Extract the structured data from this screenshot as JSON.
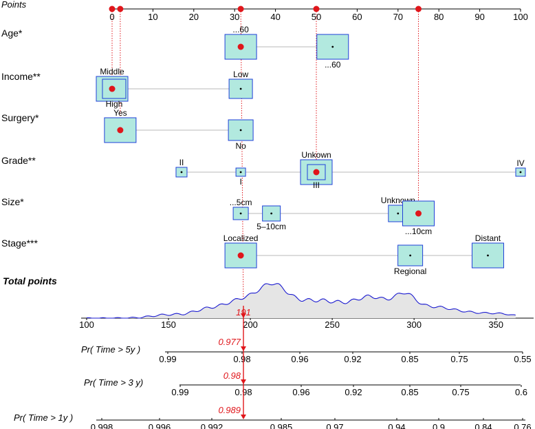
{
  "chart_data": {
    "type": "nomogram",
    "points_axis": {
      "label": "Points",
      "min": 0,
      "max": 100,
      "ticks": [
        "0",
        "10",
        "20",
        "30",
        "40",
        "50",
        "60",
        "70",
        "80",
        "90",
        "100"
      ],
      "highlighted_points": [
        0,
        2,
        31.5,
        50,
        75
      ]
    },
    "variables": [
      {
        "name": "Age*",
        "levels": [
          {
            "label": "...60",
            "points": 31.5,
            "label_pos": "above"
          },
          {
            "label": "...60",
            "points": 54,
            "label_pos": "below"
          }
        ],
        "selected_points": 31.5
      },
      {
        "name": "Income**",
        "levels": [
          {
            "label": "Middle",
            "points": 0,
            "label_pos": "above"
          },
          {
            "label": "High",
            "points": 0.5,
            "label_pos": "below"
          },
          {
            "label": "Low",
            "points": 31.5,
            "label_pos": "above"
          }
        ],
        "selected_points": 0
      },
      {
        "name": "Surgery*",
        "levels": [
          {
            "label": "Yes",
            "points": 2,
            "label_pos": "above"
          },
          {
            "label": "No",
            "points": 31.5,
            "label_pos": "below"
          }
        ],
        "selected_points": 2
      },
      {
        "name": "Grade**",
        "levels": [
          {
            "label": "II",
            "points": 17,
            "label_pos": "above"
          },
          {
            "label": "I",
            "points": 31.5,
            "label_pos": "below"
          },
          {
            "label": "Unkown",
            "points": 50,
            "label_pos": "above"
          },
          {
            "label": "III",
            "points": 50,
            "label_pos": "below"
          },
          {
            "label": "IV",
            "points": 100,
            "label_pos": "above"
          }
        ],
        "selected_points": 50
      },
      {
        "name": "Size*",
        "levels": [
          {
            "label": "...5cm",
            "points": 31.5,
            "label_pos": "above"
          },
          {
            "label": "5–10cm",
            "points": 39,
            "label_pos": "below"
          },
          {
            "label": "Unknown",
            "points": 70,
            "label_pos": "above"
          },
          {
            "label": "...10cm",
            "points": 75,
            "label_pos": "below"
          }
        ],
        "selected_points": 75
      },
      {
        "name": "Stage***",
        "levels": [
          {
            "label": "Localized",
            "points": 31.5,
            "label_pos": "above"
          },
          {
            "label": "Regional",
            "points": 73,
            "label_pos": "below"
          },
          {
            "label": "Distant",
            "points": 92,
            "label_pos": "above"
          }
        ],
        "selected_points": 31.5
      }
    ],
    "total_points_axis": {
      "label": "Total points",
      "min": 100,
      "max": 360,
      "ticks": [
        100,
        150,
        200,
        250,
        300,
        350
      ],
      "selected_value": "191",
      "selected_total": 191
    },
    "probability_axes": [
      {
        "label": "Pr( Time > 5y )",
        "ticks": [
          "0.99",
          "0.98",
          "0.96",
          "0.92",
          "0.85",
          "0.75",
          "0.55"
        ],
        "selected_value": "0.977"
      },
      {
        "label": "Pr( Time > 3 y)",
        "ticks": [
          "0.99",
          "0.98",
          "0.96",
          "0.92",
          "0.85",
          "0.75",
          "0.6"
        ],
        "selected_value": "0.98"
      },
      {
        "label": "Pr( Time > 1y )",
        "ticks": [
          "0.998",
          "0.996",
          "0.992",
          "0.985",
          "0.97",
          "0.94",
          "0.9",
          "0.84",
          "0.76"
        ],
        "selected_value": "0.989"
      }
    ],
    "colors": {
      "box_fill": "#b2e9df",
      "box_stroke": "#1f3fd8",
      "marker": "#e0161b",
      "density_line": "#1a1ad0",
      "density_fill": "#e5e5e5",
      "connector": "#c8c8c8"
    }
  }
}
